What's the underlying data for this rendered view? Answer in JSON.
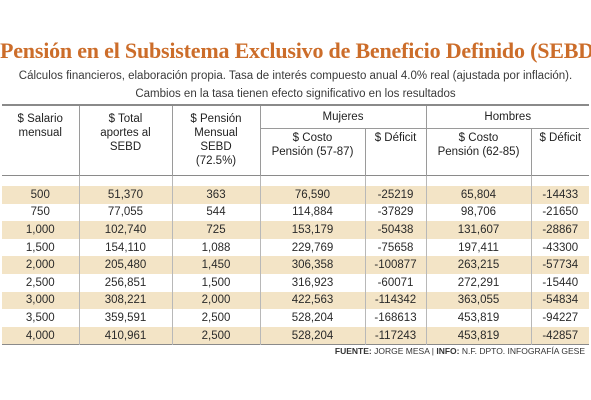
{
  "title": "Pensión en el Subsistema Exclusivo de Beneficio Definido (SEBD)",
  "subtitle_line1": "Cálculos financieros, elaboración propia. Tasa de interés compuesto anual 4.0% real (ajustada por inflación).",
  "subtitle_line2": "Cambios en la tasa tienen efecto significativo en los resultados",
  "headers": {
    "salario": "$ Salario mensual",
    "total_aportes": "$ Total aportes al SEBD",
    "pension": "$ Pensión Mensual SEBD (72.5%)",
    "mujeres": "Mujeres",
    "hombres": "Hombres",
    "costo_mujeres": "$ Costo Pensión (57-87)",
    "deficit_mujeres": "$ Déficit",
    "costo_hombres": "$ Costo Pensión (62-85)",
    "deficit_hombres": "$ Déficit"
  },
  "rows": [
    [
      "500",
      "51,370",
      "363",
      "76,590",
      "-25219",
      "65,804",
      "-14433"
    ],
    [
      "750",
      "77,055",
      "544",
      "114,884",
      "-37829",
      "98,706",
      "-21650"
    ],
    [
      "1,000",
      "102,740",
      "725",
      "153,179",
      "-50438",
      "131,607",
      "-28867"
    ],
    [
      "1,500",
      "154,110",
      "1,088",
      "229,769",
      "-75658",
      "197,411",
      "-43300"
    ],
    [
      "2,000",
      "205,480",
      "1,450",
      "306,358",
      "-100877",
      "263,215",
      "-57734"
    ],
    [
      "2,500",
      "256,851",
      "1,500",
      "316,923",
      "-60071",
      "272,291",
      "-15440"
    ],
    [
      "3,000",
      "308,221",
      "2,000",
      "422,563",
      "-114342",
      "363,055",
      "-54834"
    ],
    [
      "3,500",
      "359,591",
      "2,500",
      "528,204",
      "-168613",
      "453,819",
      "-94227"
    ],
    [
      "4,000",
      "410,961",
      "2,500",
      "528,204",
      "-117243",
      "453,819",
      "-42857"
    ]
  ],
  "source": {
    "fuente_label": "FUENTE:",
    "fuente_value": "JORGE MESA |",
    "info_label": "INFO:",
    "info_value": "N.F. DPTO. INFOGRAFÍA GESE"
  }
}
